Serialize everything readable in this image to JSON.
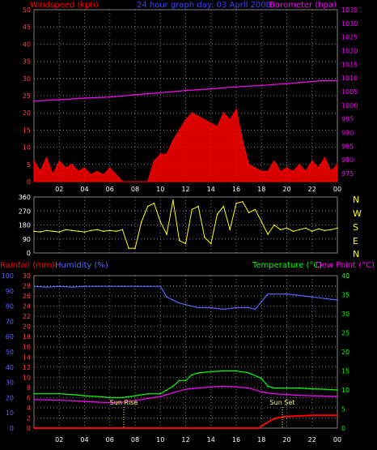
{
  "header": {
    "left_label": "Windspeed (kph)",
    "title": "24 hour graph day: 03 April 2008",
    "right_label": "Barometer (hpa)"
  },
  "wind_dir_letters": [
    "N",
    "W",
    "S",
    "E",
    "N"
  ],
  "bottom_labels": {
    "rainfall": "Rainfall (mm)",
    "humidity": "Humidity (%)",
    "temperature": "Temperature (°C)",
    "dewpoint": "Dew Point (°C)",
    "sunrise": "Sun Rise",
    "sunset": "Sun Set"
  },
  "colors": {
    "wind_gust": "#ff0000",
    "wind_avg": "#00ff00",
    "wind_low": "#ffffff",
    "barometer": "#ff00ff",
    "direction": "#ffff00",
    "humidity": "#6060ff",
    "temperature": "#00ff00",
    "dewpoint": "#ff00ff",
    "rain": "#ff0000",
    "grid": "#7f7f7f"
  },
  "chart_data": [
    {
      "type": "line",
      "title": "24 hour graph day: 03 April 2008",
      "xlabel": "",
      "ylabel": "Windspeed (kph)",
      "y2label": "Barometer (hpa)",
      "x_ticks": [
        "02",
        "04",
        "06",
        "08",
        "10",
        "12",
        "14",
        "16",
        "18",
        "20",
        "22",
        "00"
      ],
      "ylim": [
        0,
        50
      ],
      "y_ticks": [
        0,
        5,
        10,
        15,
        20,
        25,
        30,
        35,
        40,
        45,
        50
      ],
      "y2lim": [
        972,
        1035
      ],
      "y2_ticks": [
        975,
        980,
        985,
        990,
        995,
        1000,
        1005,
        1010,
        1015,
        1020,
        1025,
        1030,
        1035
      ],
      "grid": true,
      "series": [
        {
          "name": "Windspeed (kph)",
          "axis": "left",
          "x": [
            0,
            0.5,
            1,
            1.5,
            2,
            2.5,
            3,
            3.5,
            4,
            4.5,
            5,
            5.5,
            6,
            6.5,
            7,
            7.5,
            8,
            8.5,
            9,
            9.5,
            10,
            10.5,
            11,
            11.5,
            12,
            12.5,
            13,
            13.5,
            14,
            14.5,
            15,
            15.5,
            16,
            16.5,
            17,
            17.5,
            18,
            18.5,
            19,
            19.5,
            20,
            20.5,
            21,
            21.5,
            22,
            22.5,
            23,
            23.5,
            24
          ],
          "values": [
            6,
            3,
            7,
            2,
            6,
            4,
            5,
            3,
            4,
            2,
            3,
            2,
            4,
            2,
            0,
            0,
            0,
            0,
            0,
            6,
            8,
            8,
            12,
            15,
            18,
            20,
            19,
            18,
            17,
            16,
            20,
            18,
            21,
            12,
            5,
            4,
            3,
            3,
            6,
            3,
            4,
            3,
            5,
            3,
            6,
            4,
            7,
            3,
            5
          ]
        },
        {
          "name": "Barometer (hpa)",
          "axis": "right",
          "x": [
            0,
            1,
            2,
            3,
            4,
            5,
            6,
            7,
            8,
            9,
            10,
            11,
            12,
            13,
            14,
            15,
            16,
            17,
            18,
            19,
            20,
            21,
            22,
            23,
            24
          ],
          "values": [
            1001.5,
            1001.8,
            1002,
            1002.3,
            1002.6,
            1002.8,
            1003,
            1003.4,
            1003.8,
            1004.2,
            1004.6,
            1005,
            1005.4,
            1005.7,
            1006,
            1006.4,
            1006.7,
            1007,
            1007.2,
            1007.6,
            1007.9,
            1008.3,
            1008.7,
            1009,
            1008.9
          ]
        }
      ]
    },
    {
      "type": "line",
      "title": "",
      "ylabel": "",
      "x_ticks": [],
      "ylim": [
        0,
        360
      ],
      "y_ticks": [
        0,
        90,
        180,
        270,
        360
      ],
      "grid": true,
      "series": [
        {
          "name": "",
          "x": [
            0,
            0.5,
            1,
            1.5,
            2,
            2.5,
            3,
            3.5,
            4,
            4.5,
            5,
            5.5,
            6,
            6.5,
            7,
            7.5,
            8,
            8.5,
            9,
            9.5,
            10,
            10.5,
            11,
            11.5,
            12,
            12.5,
            13,
            13.5,
            14,
            14.5,
            15,
            15.5,
            16,
            16.5,
            17,
            17.5,
            18,
            18.5,
            19,
            19.5,
            20,
            20.5,
            21,
            21.5,
            22,
            22.5,
            23,
            23.5,
            24
          ],
          "values": [
            140,
            135,
            145,
            140,
            135,
            150,
            145,
            140,
            135,
            145,
            150,
            140,
            145,
            140,
            150,
            30,
            30,
            200,
            300,
            320,
            200,
            120,
            340,
            80,
            60,
            280,
            300,
            100,
            60,
            250,
            300,
            150,
            320,
            330,
            260,
            280,
            200,
            120,
            180,
            150,
            160,
            140,
            150,
            160,
            140,
            155,
            145,
            150,
            160
          ]
        }
      ]
    },
    {
      "type": "line",
      "title": "",
      "xlabel": "",
      "ylabel": "Rainfall (mm)",
      "y_humidity_label": "Humidity (%)",
      "y2label": "Temperature (°C)Dew Point (°C)",
      "x_ticks": [
        "02",
        "04",
        "06",
        "08",
        "10",
        "12",
        "14",
        "16",
        "18",
        "20",
        "22",
        "00"
      ],
      "rain_ylim": [
        0,
        30
      ],
      "rain_ticks": [
        0,
        2,
        4,
        6,
        8,
        10,
        12,
        14,
        16,
        18,
        20,
        22,
        24,
        26,
        28,
        30
      ],
      "humidity_ylim": [
        0,
        100
      ],
      "humidity_ticks": [
        0,
        10,
        20,
        30,
        40,
        50,
        60,
        70,
        80,
        90,
        100
      ],
      "temp_ylim": [
        0,
        40
      ],
      "temp_ticks": [
        0,
        5,
        10,
        15,
        20,
        25,
        30,
        35,
        40
      ],
      "grid": true,
      "series": [
        {
          "name": "Humidity (%)",
          "axis": "humidity",
          "x": [
            0,
            1,
            2,
            3,
            4,
            5,
            6,
            7,
            8,
            9,
            10,
            10.5,
            11,
            11.5,
            12,
            13,
            14,
            15,
            16,
            17,
            17.5,
            18,
            18.5,
            19,
            20,
            21,
            22,
            23,
            24
          ],
          "values": [
            93,
            92.5,
            93,
            92.5,
            93,
            93,
            93,
            93,
            93,
            93,
            93,
            86,
            84,
            82,
            81,
            79,
            79,
            78,
            79,
            79,
            78,
            83,
            88,
            88,
            88,
            87,
            86,
            85,
            84
          ]
        },
        {
          "name": "Temperature (°C)",
          "axis": "temp",
          "x": [
            0,
            1,
            2,
            3,
            4,
            5,
            6,
            7,
            8,
            9,
            10,
            10.5,
            11,
            11.5,
            12,
            12.5,
            13,
            14,
            15,
            16,
            17,
            18,
            18.5,
            19,
            20,
            21,
            22,
            23,
            24
          ],
          "values": [
            9,
            9,
            9,
            8.8,
            8.5,
            8.3,
            8,
            8,
            8.5,
            9,
            9,
            10,
            11,
            12.5,
            12.5,
            14,
            14.5,
            14.8,
            15,
            15,
            14.5,
            13,
            11,
            10.5,
            10.5,
            10.5,
            10.3,
            10.2,
            10
          ]
        },
        {
          "name": "Dew Point (°C)",
          "axis": "temp",
          "x": [
            0,
            1,
            2,
            3,
            4,
            5,
            6,
            7,
            8,
            9,
            10,
            11,
            12,
            13,
            14,
            15,
            16,
            17,
            18,
            19,
            20,
            21,
            22,
            23,
            24
          ],
          "values": [
            7.5,
            7.4,
            7.3,
            7.2,
            7,
            6.8,
            6.7,
            6.8,
            7.2,
            7.8,
            8.3,
            9.3,
            10.2,
            10.5,
            10.8,
            11,
            10.8,
            10.5,
            9.5,
            9,
            8.8,
            8.6,
            8.5,
            8.4,
            8.3
          ]
        },
        {
          "name": "Rainfall (mm)",
          "axis": "rain",
          "x": [
            0,
            17.8,
            18,
            18.4,
            18.8,
            19.2,
            20,
            21,
            22,
            23,
            24
          ],
          "values": [
            0,
            0,
            0.4,
            1,
            1.6,
            2,
            2.3,
            2.4,
            2.5,
            2.5,
            2.5
          ]
        }
      ],
      "annotations": [
        {
          "label": "Sun Rise",
          "hour": 6.9
        },
        {
          "label": "Sun Set",
          "hour": 19.3
        }
      ]
    }
  ]
}
